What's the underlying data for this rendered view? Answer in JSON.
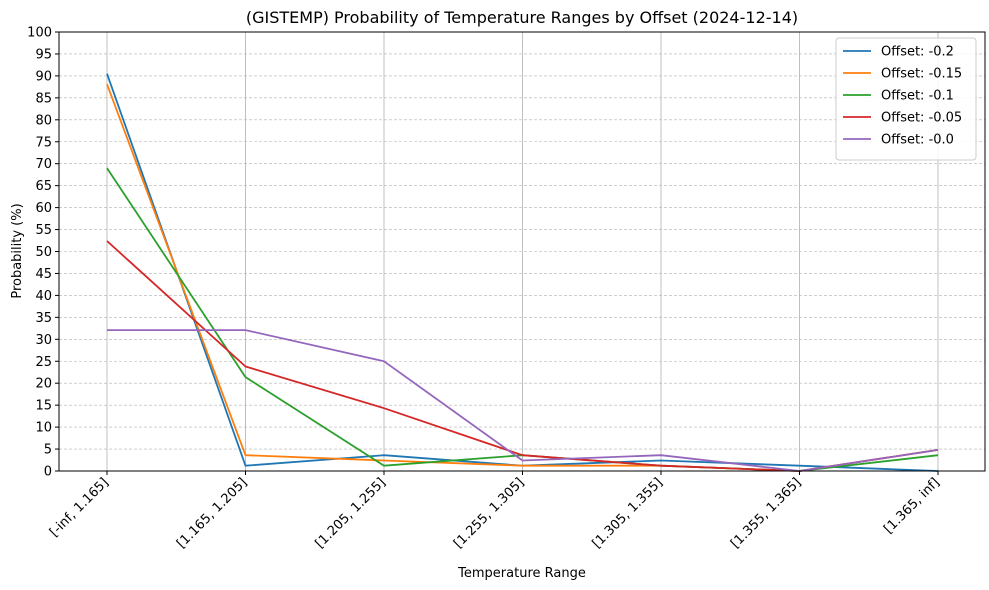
{
  "chart_data": {
    "type": "line",
    "title": "(GISTEMP) Probability of Temperature Ranges by Offset (2024-12-14)",
    "xlabel": "Temperature Range",
    "ylabel": "Probability (%)",
    "categories": [
      "[-inf, 1.165]",
      "[1.165, 1.205]",
      "[1.205, 1.255]",
      "[1.255, 1.305]",
      "[1.305, 1.355]",
      "[1.355, 1.365]",
      "[1.365, inf]"
    ],
    "ylim": [
      0,
      100
    ],
    "yticks": [
      0,
      5,
      10,
      15,
      20,
      25,
      30,
      35,
      40,
      45,
      50,
      55,
      60,
      65,
      70,
      75,
      80,
      85,
      90,
      95,
      100
    ],
    "grid": true,
    "legend_position": "top-right",
    "series": [
      {
        "name": "Offset: -0.2",
        "color": "#1f77b4",
        "values": [
          90.5,
          1.2,
          3.6,
          1.2,
          2.4,
          1.2,
          0.0
        ]
      },
      {
        "name": "Offset: -0.15",
        "color": "#ff7f0e",
        "values": [
          88.1,
          3.6,
          2.4,
          1.2,
          1.2,
          0.0,
          4.8
        ]
      },
      {
        "name": "Offset: -0.1",
        "color": "#2ca02c",
        "values": [
          69.0,
          21.4,
          1.2,
          3.6,
          1.2,
          0.0,
          3.6
        ]
      },
      {
        "name": "Offset: -0.05",
        "color": "#d62728",
        "values": [
          52.4,
          23.8,
          14.3,
          3.6,
          1.2,
          0.0,
          4.8
        ]
      },
      {
        "name": "Offset: -0.0",
        "color": "#9467bd",
        "values": [
          32.1,
          32.1,
          25.0,
          2.4,
          3.6,
          0.0,
          4.8
        ]
      }
    ]
  }
}
